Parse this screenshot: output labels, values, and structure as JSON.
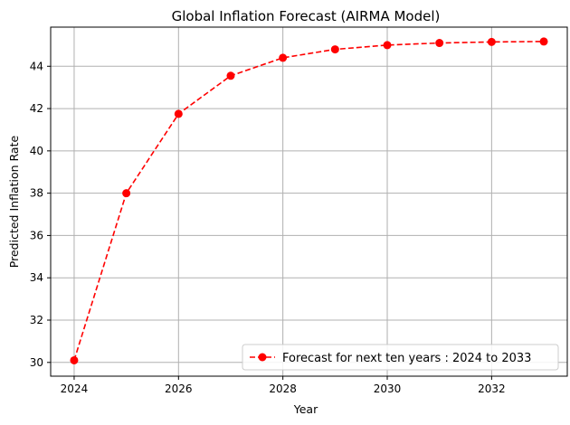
{
  "chart_data": {
    "type": "line",
    "title": "Global Inflation Forecast (AIRMA Model)",
    "xlabel": "Year",
    "ylabel": "Predicted Inflation Rate",
    "xlim": [
      2023.55,
      2033.45
    ],
    "ylim": [
      29.35,
      45.85
    ],
    "xticks": [
      2024,
      2026,
      2028,
      2030,
      2032
    ],
    "yticks": [
      30,
      32,
      34,
      36,
      38,
      40,
      42,
      44
    ],
    "grid": true,
    "legend_position": "lower-right",
    "series": [
      {
        "name": "Forecast for next ten years : 2024 to 2033",
        "color": "#ff0000",
        "line_style": "dashed",
        "marker": "circle",
        "x": [
          2024,
          2025,
          2026,
          2027,
          2028,
          2029,
          2030,
          2031,
          2032,
          2033
        ],
        "y": [
          30.1,
          38.0,
          41.75,
          43.55,
          44.4,
          44.8,
          45.0,
          45.1,
          45.15,
          45.17
        ]
      }
    ]
  }
}
